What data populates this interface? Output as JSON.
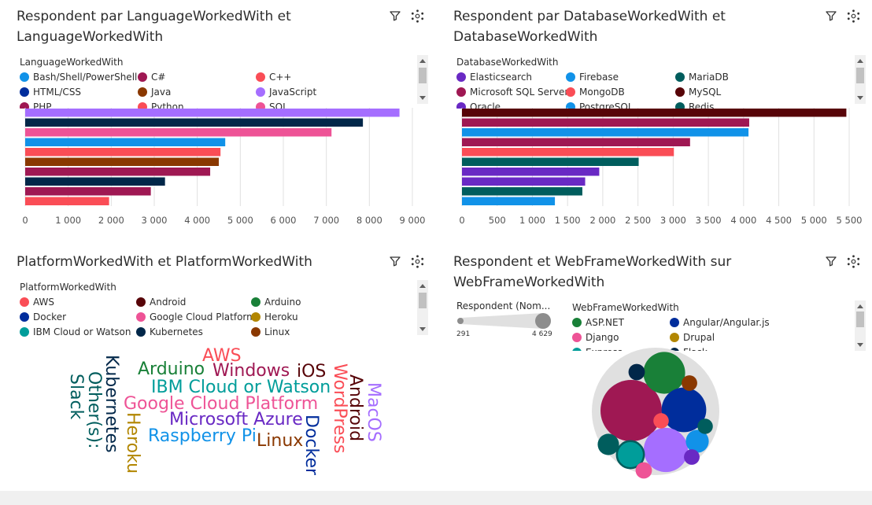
{
  "colors": {
    "background": "#f0f0f0",
    "panel": "#ffffff",
    "grid": "#e0e0e0"
  },
  "panels": {
    "lang": {
      "title": "Respondent par LanguageWorkedWith et LanguageWorkedWith",
      "title_l1": "Respondent par LanguageWorkedWith et",
      "title_l2": "LanguageWorkedWith",
      "legend_title": "LanguageWorkedWith",
      "legend": [
        {
          "label": "Bash/Shell/PowerShell",
          "color": "#1192e8"
        },
        {
          "label": "C#",
          "color": "#9f1853"
        },
        {
          "label": "C++",
          "color": "#fa4d56"
        },
        {
          "label": "HTML/CSS",
          "color": "#002d9c"
        },
        {
          "label": "Java",
          "color": "#8a3800"
        },
        {
          "label": "JavaScript",
          "color": "#a56eff"
        },
        {
          "label": "PHP",
          "color": "#9f1853"
        },
        {
          "label": "Python",
          "color": "#fa4d56"
        },
        {
          "label": "SQL",
          "color": "#ee5396"
        }
      ]
    },
    "db": {
      "title": "Respondent par DatabaseWorkedWith et DatabaseWorkedWith",
      "title_l1": "Respondent par DatabaseWorkedWith et",
      "title_l2": "DatabaseWorkedWith",
      "legend_title": "DatabaseWorkedWith",
      "legend": [
        {
          "label": "Elasticsearch",
          "color": "#6929c4"
        },
        {
          "label": "Firebase",
          "color": "#1192e8"
        },
        {
          "label": "MariaDB",
          "color": "#005d5d"
        },
        {
          "label": "Microsoft SQL Server",
          "color": "#9f1853"
        },
        {
          "label": "MongoDB",
          "color": "#fa4d56"
        },
        {
          "label": "MySQL",
          "color": "#570408"
        },
        {
          "label": "Oracle",
          "color": "#6929c4"
        },
        {
          "label": "PostgreSQL",
          "color": "#1192e8"
        },
        {
          "label": "Redis",
          "color": "#005d5d"
        }
      ]
    },
    "platform": {
      "title": "PlatformWorkedWith et PlatformWorkedWith",
      "legend_title": "PlatformWorkedWith",
      "legend": [
        {
          "label": "AWS",
          "color": "#fa4d56"
        },
        {
          "label": "Android",
          "color": "#570408"
        },
        {
          "label": "Arduino",
          "color": "#198038"
        },
        {
          "label": "Docker",
          "color": "#002d9c"
        },
        {
          "label": "Google Cloud Platform",
          "color": "#ee5396"
        },
        {
          "label": "Heroku",
          "color": "#b28600"
        },
        {
          "label": "IBM Cloud or Watson",
          "color": "#009d9a"
        },
        {
          "label": "Kubernetes",
          "color": "#012749"
        },
        {
          "label": "Linux",
          "color": "#8a3800"
        }
      ]
    },
    "web": {
      "title": "Respondent et WebFrameWorkedWith sur WebFrameWorkedWith",
      "title_l1": "Respondent et WebFrameWorkedWith sur",
      "title_l2": "WebFrameWorkedWith",
      "size_legend_title": "Respondent (Nom...",
      "size_min": "291",
      "size_max": "4 629",
      "legend_title": "WebFrameWorkedWith",
      "legend": [
        {
          "label": "ASP.NET",
          "color": "#198038"
        },
        {
          "label": "Angular/Angular.js",
          "color": "#002d9c"
        },
        {
          "label": "Django",
          "color": "#ee5396"
        },
        {
          "label": "Drupal",
          "color": "#b28600"
        },
        {
          "label": "Express",
          "color": "#009d9a"
        },
        {
          "label": "Flask",
          "color": "#012749"
        }
      ]
    }
  },
  "chart_data": [
    {
      "type": "bar",
      "orientation": "horizontal",
      "values": [
        8700,
        7850,
        7120,
        4650,
        4540,
        4500,
        4300,
        3250,
        2920,
        1950
      ],
      "colors": [
        "#a56eff",
        "#012749",
        "#ee5396",
        "#1192e8",
        "#fa4d56",
        "#8a3800",
        "#9f1853",
        "#012749",
        "#9f1853",
        "#fa4d56"
      ],
      "xlim": [
        0,
        9000
      ],
      "xticks": [
        "0",
        "1 000",
        "2 000",
        "3 000",
        "4 000",
        "5 000",
        "6 000",
        "7 000",
        "8 000",
        "9 000"
      ],
      "xtick_values": [
        0,
        1000,
        2000,
        3000,
        4000,
        5000,
        6000,
        7000,
        8000,
        9000
      ],
      "grid": true
    },
    {
      "type": "bar",
      "orientation": "horizontal",
      "values": [
        5460,
        4080,
        4070,
        3240,
        3010,
        2510,
        1950,
        1750,
        1710,
        1320
      ],
      "colors": [
        "#570408",
        "#9f1853",
        "#1192e8",
        "#9f1853",
        "#fa4d56",
        "#005d5d",
        "#6929c4",
        "#6929c4",
        "#005d5d",
        "#1192e8"
      ],
      "xlim": [
        0,
        5500
      ],
      "xticks": [
        "0",
        "500",
        "1 000",
        "1 500",
        "2 000",
        "2 500",
        "3 000",
        "3 500",
        "4 000",
        "4 500",
        "5 000",
        "5 500"
      ],
      "xtick_values": [
        0,
        500,
        1000,
        1500,
        2000,
        2500,
        3000,
        3500,
        4000,
        4500,
        5000,
        5500
      ],
      "grid": true
    },
    {
      "type": "wordcloud",
      "words": [
        {
          "text": "AWS",
          "color": "#fa4d56"
        },
        {
          "text": "Arduino",
          "color": "#198038"
        },
        {
          "text": "Windows",
          "color": "#9f1853"
        },
        {
          "text": "iOS",
          "color": "#570408"
        },
        {
          "text": "IBM Cloud or Watson",
          "color": "#009d9a"
        },
        {
          "text": "Google Cloud Platform",
          "color": "#ee5396"
        },
        {
          "text": "Microsoft Azure",
          "color": "#6929c4"
        },
        {
          "text": "Raspberry Pi",
          "color": "#1192e8"
        },
        {
          "text": "Linux",
          "color": "#8a3800"
        },
        {
          "text": "Kubernetes",
          "color": "#012749"
        },
        {
          "text": "Other(s):",
          "color": "#005d5d"
        },
        {
          "text": "Slack",
          "color": "#005d5d"
        },
        {
          "text": "Heroku",
          "color": "#b28600"
        },
        {
          "text": "Docker",
          "color": "#002d9c"
        },
        {
          "text": "WordPress",
          "color": "#fa4d56"
        },
        {
          "text": "Android",
          "color": "#570408"
        },
        {
          "text": "MacOS",
          "color": "#a56eff"
        }
      ]
    },
    {
      "type": "packed-bubble",
      "size_range": [
        291,
        4629
      ],
      "bubbles": [
        {
          "color": "#9f1853",
          "value": 4629
        },
        {
          "color": "#198038",
          "value": 2150
        },
        {
          "color": "#002d9c",
          "value": 2450
        },
        {
          "color": "#a56eff",
          "value": 2400
        },
        {
          "color": "#1192e8",
          "value": 650
        },
        {
          "color": "#009d9a",
          "value": 900
        },
        {
          "color": "#005d5d",
          "value": 560
        },
        {
          "color": "#012749",
          "value": 330
        },
        {
          "color": "#8a3800",
          "value": 300
        },
        {
          "color": "#ee5396",
          "value": 330
        },
        {
          "color": "#6929c4",
          "value": 300
        },
        {
          "color": "#005d5d",
          "value": 291
        },
        {
          "color": "#fa4d56",
          "value": 291
        }
      ]
    }
  ]
}
